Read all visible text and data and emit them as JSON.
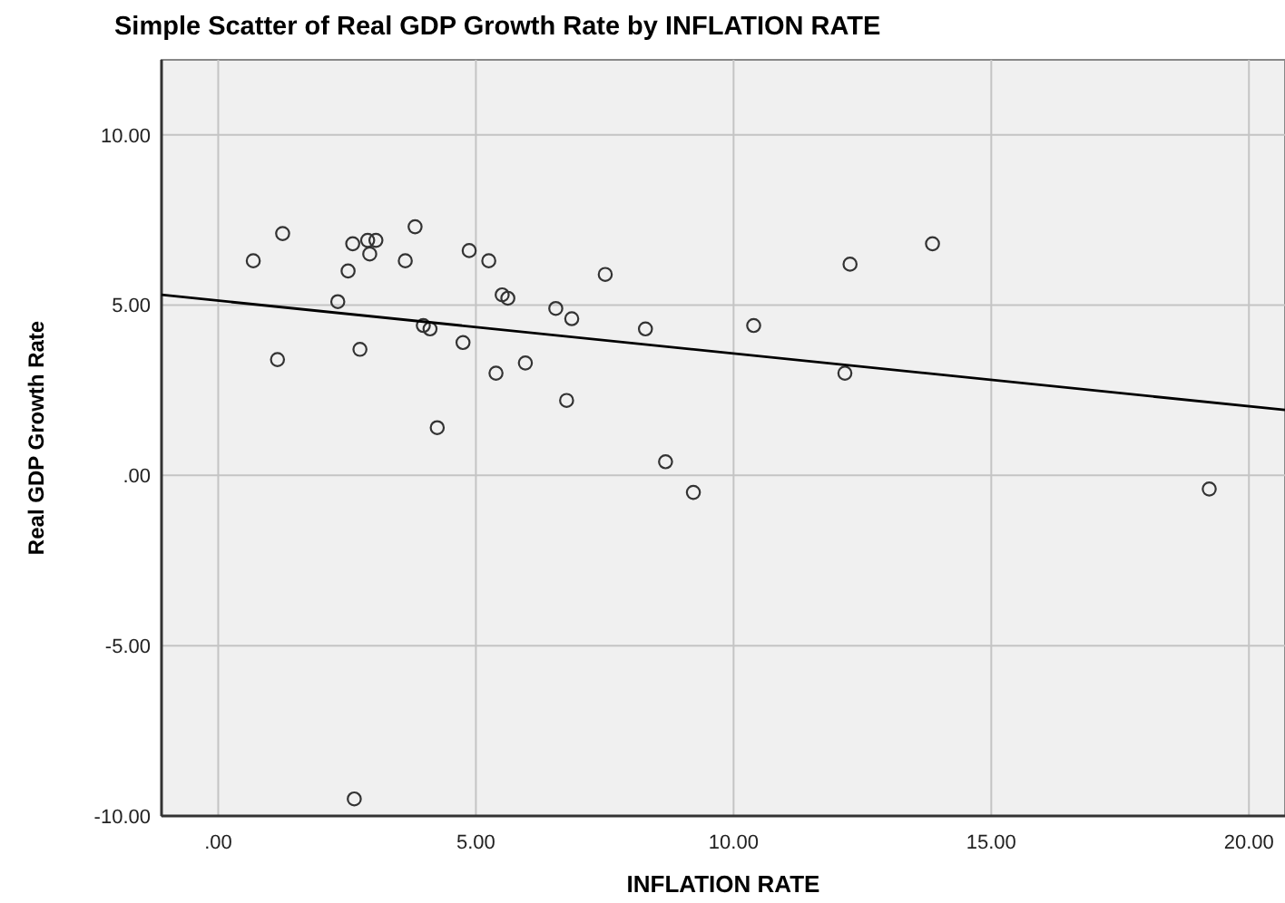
{
  "chart_data": {
    "type": "scatter",
    "title": "Simple Scatter of Real GDP Growth Rate by INFLATION RATE",
    "xlabel": "INFLATION RATE",
    "ylabel": "Real GDP Growth Rate",
    "xlim": [
      -1.1,
      20.7
    ],
    "ylim": [
      -10,
      12.2
    ],
    "xticks": [
      {
        "value": 0,
        "label": ".00"
      },
      {
        "value": 5,
        "label": "5.00"
      },
      {
        "value": 10,
        "label": "10.00"
      },
      {
        "value": 15,
        "label": "15.00"
      },
      {
        "value": 20,
        "label": "20.00"
      }
    ],
    "yticks": [
      {
        "value": -10,
        "label": "-10.00"
      },
      {
        "value": -5,
        "label": "-5.00"
      },
      {
        "value": 0,
        "label": ".00"
      },
      {
        "value": 5,
        "label": "5.00"
      },
      {
        "value": 10,
        "label": "10.00"
      }
    ],
    "grid": true,
    "marker": "circle",
    "series": [
      {
        "color": "#333333",
        "x": [
          0.68,
          1.25,
          1.15,
          2.32,
          2.52,
          2.61,
          2.75,
          2.9,
          3.06,
          2.94,
          3.63,
          3.82,
          3.98,
          4.11,
          4.25,
          4.75,
          4.87,
          5.25,
          5.39,
          5.51,
          5.62,
          5.96,
          6.55,
          6.76,
          6.86,
          7.51,
          8.29,
          8.68,
          9.22,
          2.64,
          10.39,
          12.26,
          13.86,
          12.16,
          19.23
        ],
        "values": [
          6.3,
          7.1,
          3.4,
          5.1,
          6.0,
          6.8,
          3.7,
          6.9,
          6.9,
          6.5,
          6.3,
          7.3,
          4.4,
          4.3,
          1.4,
          3.9,
          6.6,
          6.3,
          3.0,
          5.3,
          5.2,
          3.3,
          4.9,
          2.2,
          4.6,
          5.9,
          4.3,
          0.4,
          -0.5,
          -9.5,
          4.4,
          6.2,
          6.8,
          3.0,
          -0.4
        ]
      },
      {
        "type": "line",
        "color": "#000000",
        "x": [
          -1.1,
          20.7
        ],
        "values": [
          5.3,
          1.92
        ],
        "marker": "none"
      }
    ]
  }
}
